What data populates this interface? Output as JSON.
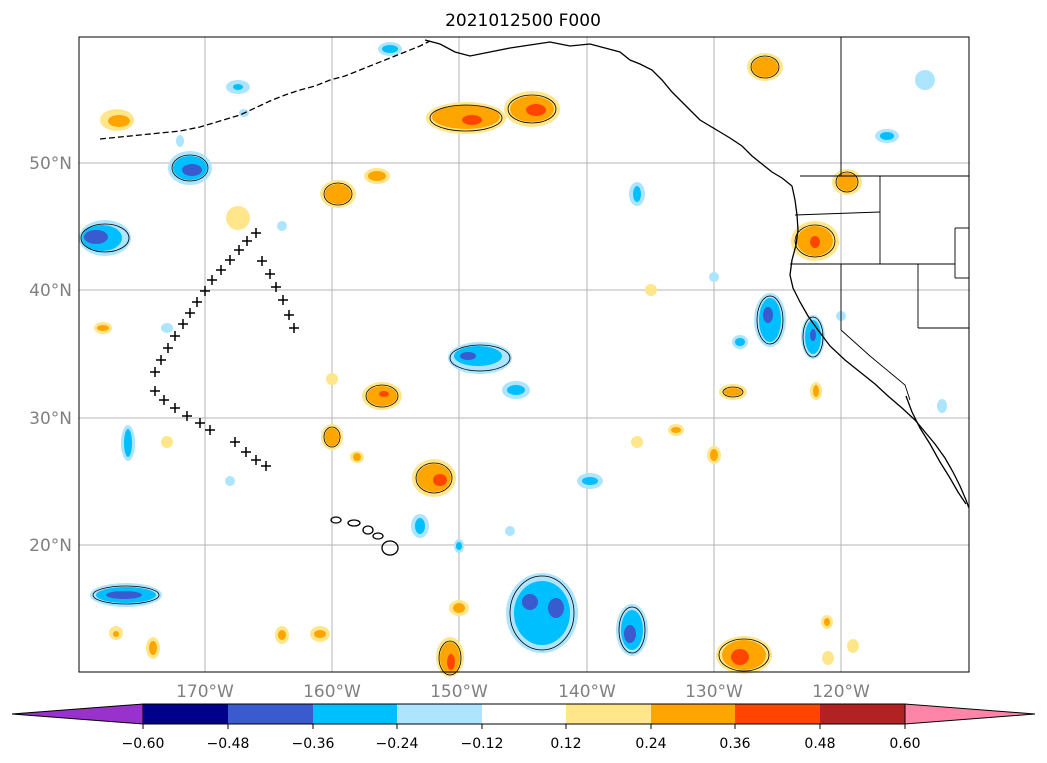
{
  "title": "2021012500 F000",
  "lat_labels": [
    "50°N",
    "40°N",
    "30°N",
    "20°N"
  ],
  "lon_labels": [
    "170°W",
    "160°W",
    "150°W",
    "140°W",
    "130°W",
    "120°W"
  ],
  "colorbar": {
    "ticks": [
      "−0.60",
      "−0.48",
      "−0.36",
      "−0.24",
      "−0.12",
      "0.12",
      "0.24",
      "0.36",
      "0.48",
      "0.60"
    ],
    "colors": [
      "#9932CC",
      "#00008B",
      "#3A5BD0",
      "#00BFFF",
      "#ADE4FF",
      "#FFFFFF",
      "#FFE68A",
      "#FFA500",
      "#FF4500",
      "#B22222",
      "#FF85A8"
    ]
  },
  "track_marker": "+"
}
